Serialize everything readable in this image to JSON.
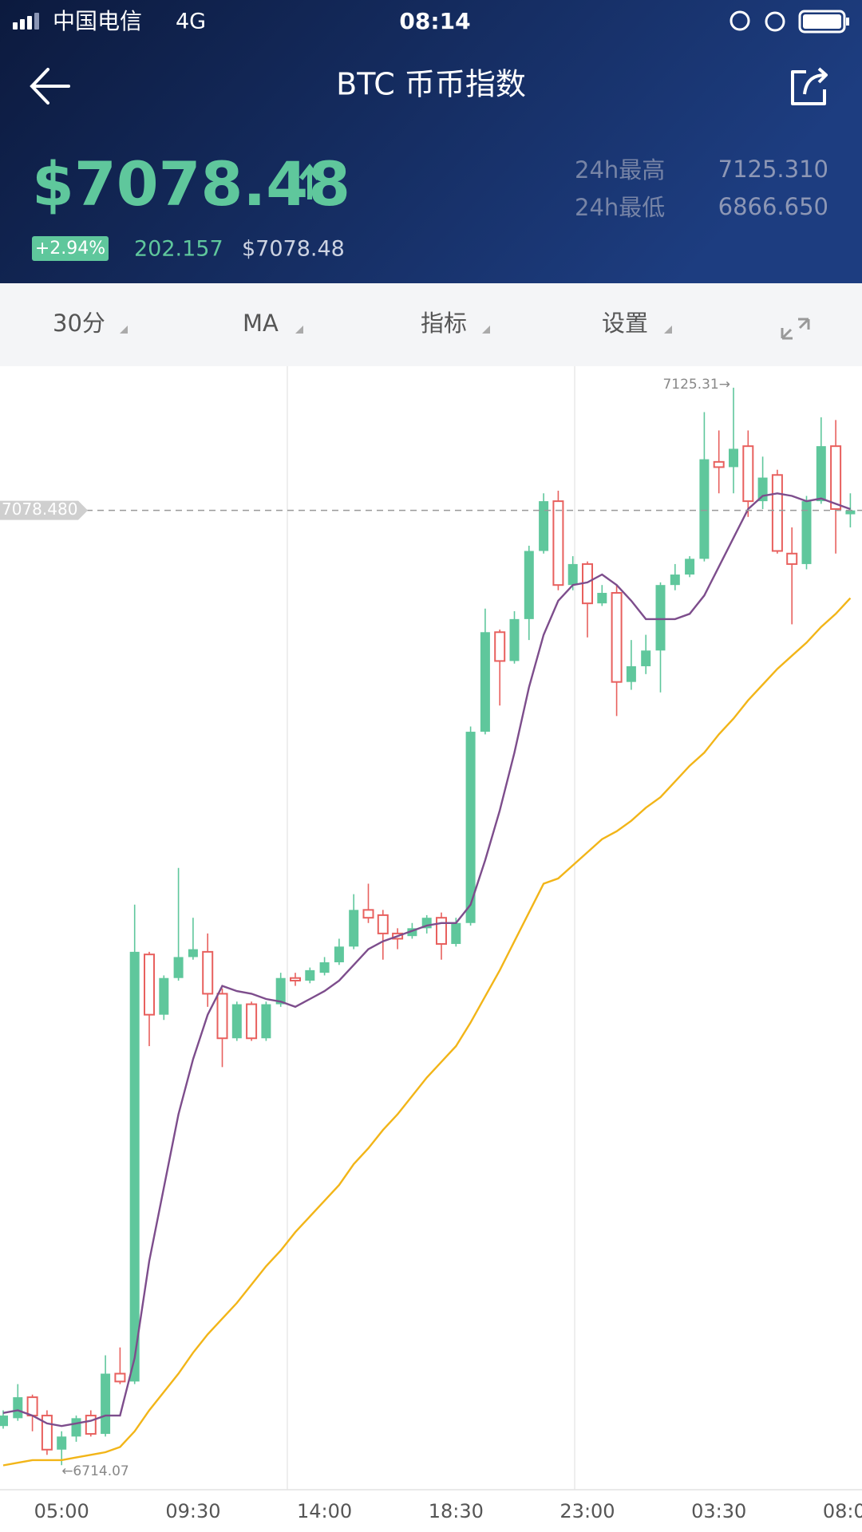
{
  "status_bar": {
    "carrier": "中国电信",
    "network": "4G",
    "time": "08:14"
  },
  "header": {
    "title": "BTC 币币指数",
    "price": "$7078.48",
    "change_percent": "+2.94%",
    "change_amount": "202.157",
    "price_usd": "$7078.48",
    "high_24h_label": "24h最高",
    "high_24h": "7125.310",
    "low_24h_label": "24h最低",
    "low_24h": "6866.650"
  },
  "toolbar": {
    "items": [
      "30分",
      "MA",
      "指标",
      "设置"
    ]
  },
  "chart_data": {
    "type": "candlestick",
    "categories": [
      null,
      null,
      null,
      null,
      "05:00",
      null,
      null,
      null,
      null,
      null,
      null,
      null,
      null,
      "09:30",
      null,
      null,
      null,
      null,
      null,
      null,
      null,
      null,
      "14:00",
      null,
      null,
      null,
      null,
      null,
      null,
      null,
      null,
      "18:30",
      null,
      null,
      null,
      null,
      null,
      null,
      null,
      null,
      "23:00",
      null,
      null,
      null,
      null,
      null,
      null,
      null,
      null,
      "03:30",
      null,
      null,
      null,
      null,
      null,
      null,
      null,
      null,
      "08:00"
    ],
    "open": [
      6729,
      6732,
      6740,
      6733,
      6720,
      6725,
      6733,
      6726,
      6749,
      6746,
      6909,
      6886,
      6900,
      6908,
      6910,
      6894,
      6877,
      6890,
      6877,
      6890,
      6900,
      6899,
      6902,
      6906,
      6912,
      6926,
      6924,
      6917,
      6916,
      6919,
      6923,
      6913,
      6921,
      6994,
      7032,
      7021,
      7037,
      7063,
      7082,
      7050,
      7058,
      7043,
      7047,
      7013,
      7019,
      7025,
      7050,
      7054,
      7060,
      7097,
      7095,
      7103,
      7082,
      7092,
      7062,
      7058,
      7082,
      7103,
      7077
    ],
    "high": [
      6735,
      6745,
      6741,
      6735,
      6727,
      6733,
      6735,
      6756,
      6759,
      6928,
      6910,
      6901,
      6942,
      6923,
      6917,
      6896,
      6891,
      6891,
      6891,
      6902,
      6902,
      6904,
      6908,
      6915,
      6932,
      6936,
      6926,
      6919,
      6921,
      6924,
      6925,
      6923,
      6996,
      7041,
      7033,
      7040,
      7065,
      7085,
      7086,
      7061,
      7059,
      7050,
      7050,
      7029,
      7031,
      7051,
      7058,
      7061,
      7116,
      7109,
      7125.31,
      7109,
      7099,
      7094,
      7072,
      7084,
      7114,
      7113,
      7085
    ],
    "low": [
      6728,
      6731,
      6727,
      6718,
      6714.07,
      6723,
      6725,
      6725,
      6745,
      6745,
      6874,
      6884,
      6899,
      6907,
      6889,
      6866,
      6876,
      6876,
      6876,
      6889,
      6897,
      6898,
      6901,
      6905,
      6911,
      6921,
      6907,
      6911,
      6915,
      6917,
      6907,
      6912,
      6920,
      6993,
      7004,
      7020,
      7029,
      7062,
      7048,
      7048,
      7030,
      7042,
      7000,
      7010,
      7016,
      7009,
      7048,
      7053,
      7059,
      7085,
      7085,
      7076,
      7079,
      7062,
      7035,
      7056,
      7081,
      7062,
      7072
    ],
    "close": [
      6733,
      6740,
      6733,
      6720,
      6725,
      6732,
      6726,
      6749,
      6746,
      6910,
      6886,
      6900,
      6908,
      6911,
      6894,
      6877,
      6890,
      6877,
      6890,
      6900,
      6899,
      6903,
      6906,
      6912,
      6926,
      6923,
      6917,
      6915,
      6919,
      6923,
      6913,
      6921,
      6994,
      7032,
      7021,
      7037,
      7063,
      7082,
      7050,
      7058,
      7043,
      7047,
      7013,
      7019,
      7025,
      7050,
      7054,
      7060,
      7098,
      7095,
      7102,
      7082,
      7091,
      7063,
      7058,
      7082,
      7103,
      7079,
      7078.48
    ],
    "up_color": "#5fc79c",
    "down_color": "#e8605e",
    "lines": [
      {
        "color": "#7d4d8c",
        "values": [
          6734,
          6735,
          6733,
          6730,
          6729,
          6730,
          6731,
          6733,
          6733,
          6755,
          6792,
          6820,
          6848,
          6869,
          6886,
          6897,
          6895,
          6894,
          6892,
          6891,
          6889,
          6892,
          6895,
          6899,
          6905,
          6911,
          6914,
          6916,
          6918,
          6920,
          6921,
          6921,
          6928,
          6945,
          6964,
          6986,
          7011,
          7031,
          7044,
          7050,
          7051,
          7054,
          7050,
          7044,
          7037,
          7037,
          7037,
          7039,
          7046,
          7057,
          7068,
          7079,
          7084,
          7085,
          7084,
          7082,
          7083,
          7081,
          7079
        ]
      },
      {
        "color": "#f2b518",
        "values": [
          6714,
          6715,
          6716,
          6716,
          6716,
          6717,
          6718,
          6719,
          6721,
          6727,
          6735,
          6742,
          6749,
          6757,
          6764,
          6770,
          6776,
          6783,
          6790,
          6796,
          6803,
          6809,
          6815,
          6821,
          6829,
          6835,
          6842,
          6848,
          6855,
          6862,
          6868,
          6874,
          6883,
          6893,
          6903,
          6914,
          6925,
          6936,
          6938,
          6943,
          6948,
          6953,
          6956,
          6960,
          6965,
          6969,
          6975,
          6981,
          6986,
          6993,
          6999,
          7006,
          7012,
          7018,
          7023,
          7028,
          7034,
          7039,
          7045
        ]
      }
    ],
    "ylim": [
      6704.7,
      7133.5
    ],
    "last_label": "7078.480",
    "high_label": "7125.31→",
    "low_label": "←6714.07"
  }
}
